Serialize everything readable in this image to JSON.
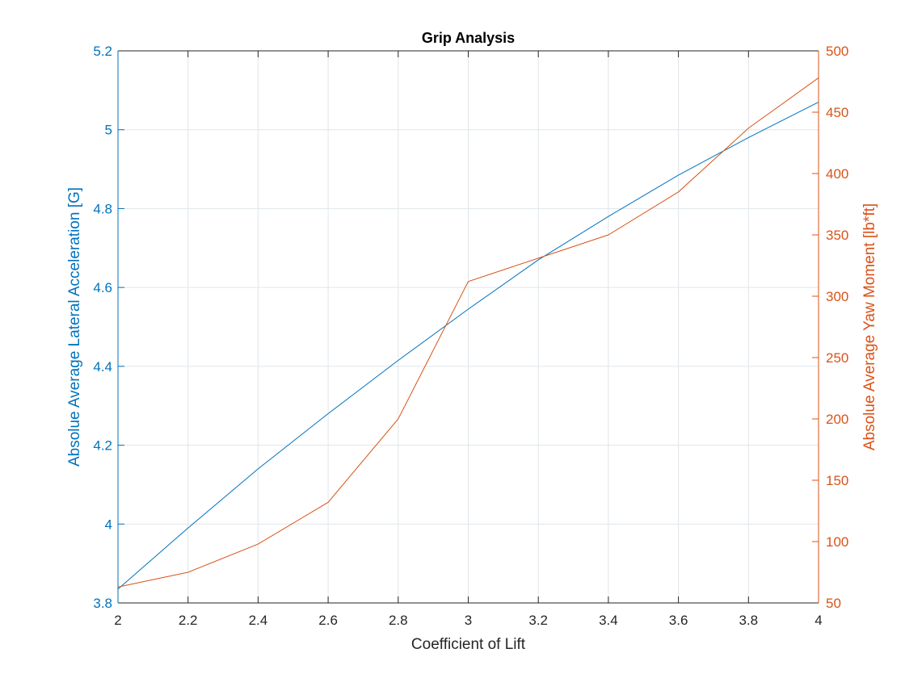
{
  "chart_data": {
    "type": "line",
    "title": "Grip Analysis",
    "xlabel": "Coefficient of Lift",
    "ylabel_left": "Absolue Average Lateral Acceleration [G]",
    "ylabel_right": "Absolue Average Yaw Moment [lb*ft]",
    "xlim": [
      2,
      4
    ],
    "ylim_left": [
      3.8,
      5.2
    ],
    "ylim_right": [
      50,
      500
    ],
    "x_ticks": [
      "2",
      "2.2",
      "2.4",
      "2.6",
      "2.8",
      "3",
      "3.2",
      "3.4",
      "3.6",
      "3.8",
      "4"
    ],
    "y_ticks_left": [
      "3.8",
      "4",
      "4.2",
      "4.4",
      "4.6",
      "4.8",
      "5",
      "5.2"
    ],
    "y_ticks_right": [
      "50",
      "100",
      "150",
      "200",
      "250",
      "300",
      "350",
      "400",
      "450",
      "500"
    ],
    "grid": true,
    "colors": {
      "left": "#0072BD",
      "right": "#D95319"
    },
    "x": [
      2,
      2.2,
      2.4,
      2.6,
      2.8,
      3,
      3.2,
      3.4,
      3.6,
      3.8,
      4
    ],
    "series": [
      {
        "axis": "left",
        "values": [
          3.835,
          3.99,
          4.14,
          4.28,
          4.415,
          4.545,
          4.67,
          4.78,
          4.885,
          4.98,
          5.07
        ]
      },
      {
        "axis": "right",
        "values": [
          63,
          75,
          98,
          132,
          200,
          312,
          331,
          350,
          385,
          437,
          478
        ]
      }
    ]
  }
}
